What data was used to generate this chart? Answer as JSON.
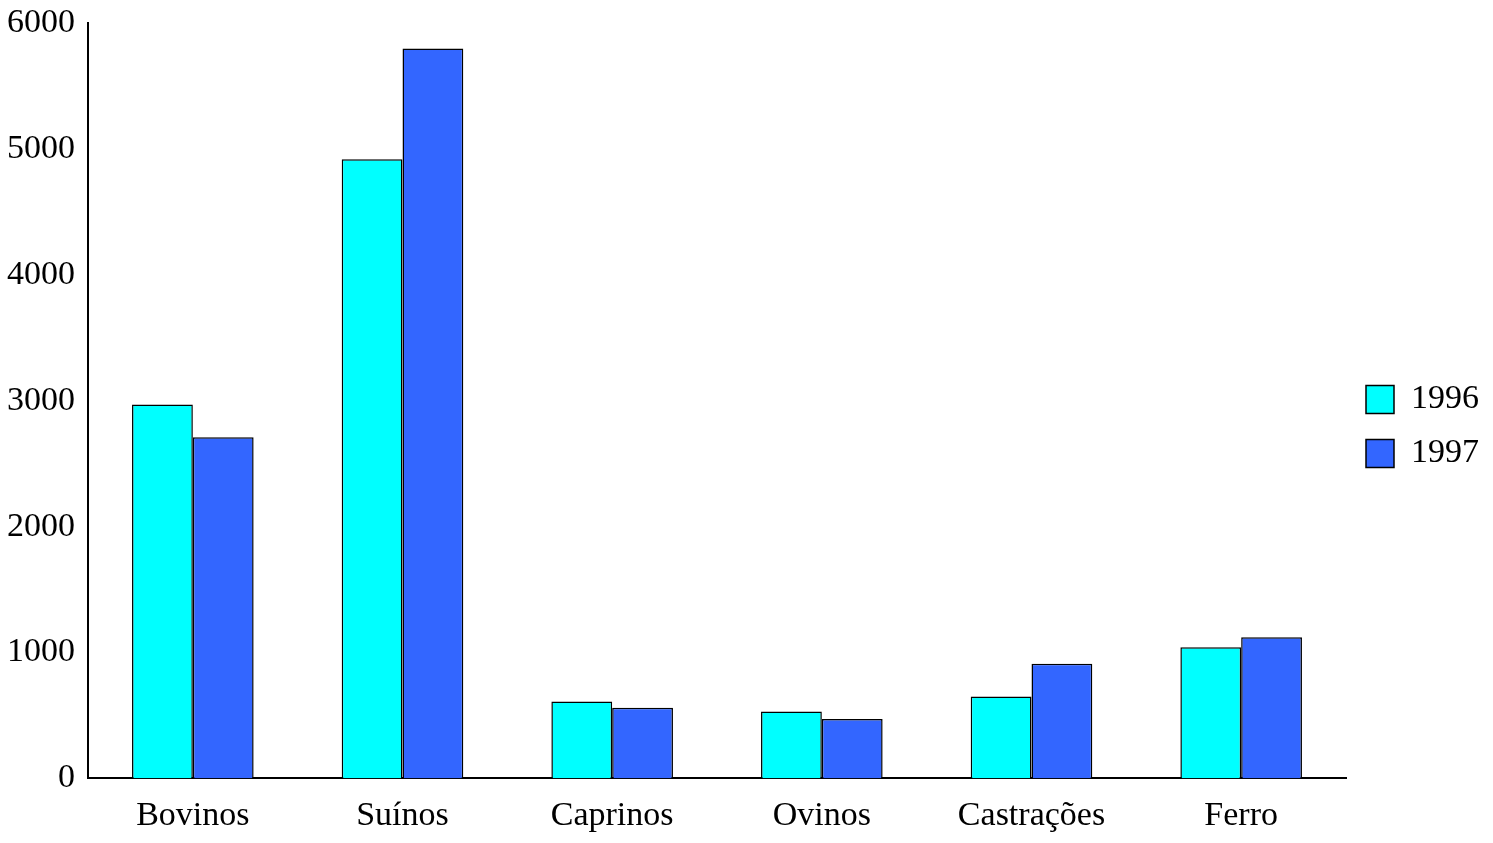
{
  "chart_data": {
    "type": "bar",
    "categories": [
      "Bovinos",
      "Suínos",
      "Caprinos",
      "Ovinos",
      "Castrações",
      "Ferro"
    ],
    "series": [
      {
        "name": "1996",
        "color": "#00ffff",
        "values": [
          2970,
          4920,
          610,
          530,
          650,
          1040
        ]
      },
      {
        "name": "1997",
        "color": "#3366ff",
        "values": [
          2710,
          5800,
          560,
          470,
          910,
          1120
        ]
      }
    ],
    "ylim": [
      0,
      6000
    ],
    "yticks": [
      0,
      1000,
      2000,
      3000,
      4000,
      5000,
      6000
    ],
    "grid": false,
    "legend": "right"
  }
}
